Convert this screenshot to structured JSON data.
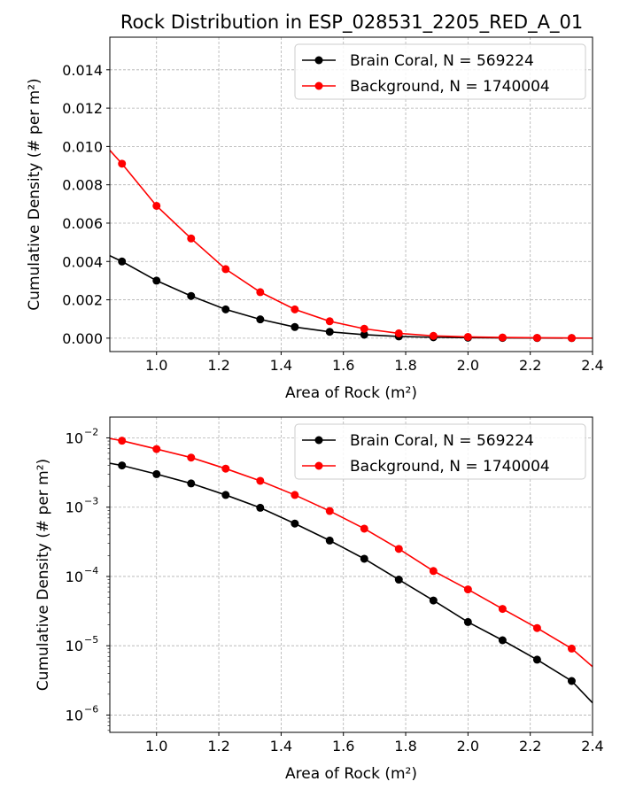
{
  "figure": {
    "title": "Rock Distribution in ESP_028531_2205_RED_A_01"
  },
  "chart_data": [
    {
      "type": "line",
      "scale": "linear",
      "xlabel": "Area of Rock (m²)",
      "ylabel": "Cumulative Density (# per m²)",
      "xlim": [
        0.85,
        2.4
      ],
      "ylim": [
        -0.0007,
        0.0157
      ],
      "xticks": [
        1.0,
        1.2,
        1.4,
        1.6,
        1.8,
        2.0,
        2.2,
        2.4
      ],
      "xtick_labels": [
        "1.0",
        "1.2",
        "1.4",
        "1.6",
        "1.8",
        "2.0",
        "2.2",
        "2.4"
      ],
      "yticks": [
        0.0,
        0.002,
        0.004,
        0.006,
        0.008,
        0.01,
        0.012,
        0.014
      ],
      "ytick_labels": [
        "0.000",
        "0.002",
        "0.004",
        "0.006",
        "0.008",
        "0.010",
        "0.012",
        "0.014"
      ],
      "grid": true,
      "legend_position": "top-right",
      "series": [
        {
          "name": "Brain Coral, N = 569224",
          "color": "#000000",
          "x": [
            0.85,
            0.889,
            1.0,
            1.111,
            1.222,
            1.333,
            1.444,
            1.556,
            1.667,
            1.778,
            1.889,
            2.0,
            2.111,
            2.222,
            2.333,
            2.4
          ],
          "y": [
            0.0043,
            0.004,
            0.003,
            0.0022,
            0.0015,
            0.00098,
            0.00058,
            0.00033,
            0.00018,
            9e-05,
            4.5e-05,
            2.2e-05,
            1.2e-05,
            6.3e-06,
            3.1e-06,
            1.5e-06
          ],
          "markers": [
            false,
            true,
            true,
            true,
            true,
            true,
            true,
            true,
            true,
            true,
            true,
            true,
            true,
            true,
            true,
            false
          ]
        },
        {
          "name": "Background, N = 1740004",
          "color": "#ff0000",
          "x": [
            0.85,
            0.889,
            1.0,
            1.111,
            1.222,
            1.333,
            1.444,
            1.556,
            1.667,
            1.778,
            1.889,
            2.0,
            2.111,
            2.222,
            2.333,
            2.4
          ],
          "y": [
            0.0098,
            0.0091,
            0.0069,
            0.0052,
            0.0036,
            0.0024,
            0.0015,
            0.00088,
            0.00049,
            0.00025,
            0.00012,
            6.5e-05,
            3.4e-05,
            1.8e-05,
            9.1e-06,
            5e-06
          ],
          "markers": [
            false,
            true,
            true,
            true,
            true,
            true,
            true,
            true,
            true,
            true,
            true,
            true,
            true,
            true,
            true,
            false
          ]
        }
      ]
    },
    {
      "type": "line",
      "scale": "log",
      "xlabel": "Area of Rock (m²)",
      "ylabel": "Cumulative Density (# per m²)",
      "xlim": [
        0.85,
        2.4
      ],
      "ylim_log10": [
        -6.25,
        -1.7
      ],
      "xticks": [
        1.0,
        1.2,
        1.4,
        1.6,
        1.8,
        2.0,
        2.2,
        2.4
      ],
      "xtick_labels": [
        "1.0",
        "1.2",
        "1.4",
        "1.6",
        "1.8",
        "2.0",
        "2.2",
        "2.4"
      ],
      "yticks_exp": [
        -6,
        -5,
        -4,
        -3,
        -2
      ],
      "ytick_labels": [
        "10",
        "10",
        "10",
        "10",
        "10"
      ],
      "ytick_exponents": [
        "−6",
        "−5",
        "−4",
        "−3",
        "−2"
      ],
      "grid": true,
      "legend_position": "top-right",
      "series": [
        {
          "name": "Brain Coral, N = 569224",
          "color": "#000000",
          "x": [
            0.85,
            0.889,
            1.0,
            1.111,
            1.222,
            1.333,
            1.444,
            1.556,
            1.667,
            1.778,
            1.889,
            2.0,
            2.111,
            2.222,
            2.333,
            2.4
          ],
          "y": [
            0.0043,
            0.004,
            0.003,
            0.0022,
            0.0015,
            0.00098,
            0.00058,
            0.00033,
            0.00018,
            9e-05,
            4.5e-05,
            2.2e-05,
            1.2e-05,
            6.3e-06,
            3.1e-06,
            1.5e-06
          ],
          "markers": [
            false,
            true,
            true,
            true,
            true,
            true,
            true,
            true,
            true,
            true,
            true,
            true,
            true,
            true,
            true,
            false
          ]
        },
        {
          "name": "Background, N = 1740004",
          "color": "#ff0000",
          "x": [
            0.85,
            0.889,
            1.0,
            1.111,
            1.222,
            1.333,
            1.444,
            1.556,
            1.667,
            1.778,
            1.889,
            2.0,
            2.111,
            2.222,
            2.333,
            2.4
          ],
          "y": [
            0.0098,
            0.0091,
            0.0069,
            0.0052,
            0.0036,
            0.0024,
            0.0015,
            0.00088,
            0.00049,
            0.00025,
            0.00012,
            6.5e-05,
            3.4e-05,
            1.8e-05,
            9.1e-06,
            5e-06
          ],
          "markers": [
            false,
            true,
            true,
            true,
            true,
            true,
            true,
            true,
            true,
            true,
            true,
            true,
            true,
            true,
            true,
            false
          ]
        }
      ]
    }
  ]
}
